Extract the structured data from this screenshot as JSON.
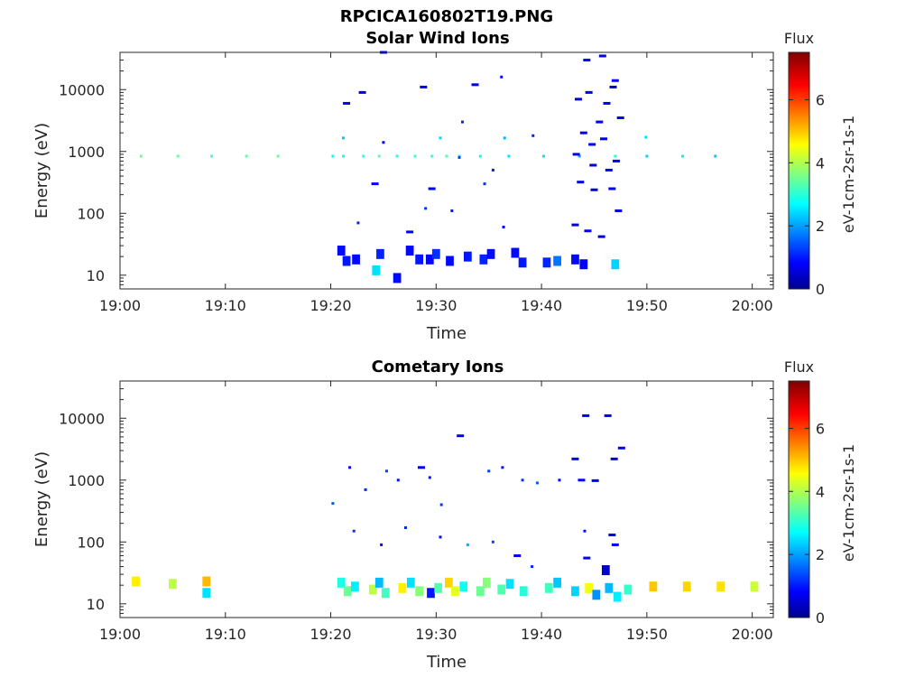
{
  "figure": {
    "title": "RPCICA160802T19.PNG"
  },
  "chart_data": [
    {
      "type": "heatmap",
      "title": "Solar Wind Ions",
      "xlabel": "Time",
      "ylabel": "Energy (eV)",
      "x_ticks": [
        "19:00",
        "19:10",
        "19:20",
        "19:30",
        "19:40",
        "19:50",
        "20:00"
      ],
      "x_range_min": [
        0,
        62
      ],
      "y_ticks": [
        "10",
        "100",
        "1000",
        "10000"
      ],
      "y_scale": "log",
      "y_range_eV": [
        6,
        40000
      ],
      "grid": false,
      "colorbar": {
        "title": "Flux",
        "label": "eV-1cm-2sr-1s-1",
        "range": [
          0,
          7.5
        ],
        "ticks": [
          "0",
          "2",
          "4",
          "6"
        ],
        "colormap": "jet"
      },
      "cells_note": "minutes after 19:00, energy eV, flux",
      "cells": [
        [
          2,
          840,
          3.6
        ],
        [
          5.5,
          840,
          3.6
        ],
        [
          8.7,
          840,
          3.3
        ],
        [
          12,
          840,
          3.5
        ],
        [
          15,
          840,
          3.6
        ],
        [
          20.2,
          840,
          2.8
        ],
        [
          21.2,
          840,
          2.9
        ],
        [
          23.1,
          840,
          3.0
        ],
        [
          24.6,
          840,
          3.5
        ],
        [
          26.3,
          840,
          3.1
        ],
        [
          28,
          840,
          3.3
        ],
        [
          29.6,
          840,
          3.2
        ],
        [
          31,
          840,
          3.4
        ],
        [
          32.2,
          840,
          3.0
        ],
        [
          34.2,
          840,
          2.8
        ],
        [
          36.9,
          840,
          2.6
        ],
        [
          40.2,
          840,
          2.6
        ],
        [
          43.6,
          840,
          2.2
        ],
        [
          47,
          840,
          3.0
        ],
        [
          50,
          840,
          2.5
        ],
        [
          53.4,
          840,
          2.7
        ],
        [
          56.5,
          840,
          2.4
        ],
        [
          21.2,
          1650,
          2.4
        ],
        [
          25.0,
          1400,
          1.0
        ],
        [
          30.4,
          1650,
          2.5
        ],
        [
          36.5,
          1650,
          2.3
        ],
        [
          49.9,
          1700,
          2.6
        ],
        [
          21.0,
          25,
          1.0
        ],
        [
          21.5,
          17,
          1.1
        ],
        [
          22.4,
          18,
          1.0
        ],
        [
          24.7,
          22,
          1.2
        ],
        [
          26.3,
          9,
          1.0
        ],
        [
          27.5,
          25,
          1.0
        ],
        [
          28.4,
          18,
          1.1
        ],
        [
          29.4,
          18,
          1.0
        ],
        [
          30.0,
          22,
          1.3
        ],
        [
          31.3,
          17,
          1.0
        ],
        [
          33.0,
          20,
          1.1
        ],
        [
          34.5,
          18,
          1.2
        ],
        [
          35.2,
          22,
          1.0
        ],
        [
          37.5,
          23,
          1.0
        ],
        [
          38.2,
          16,
          1.1
        ],
        [
          40.5,
          16,
          1.2
        ],
        [
          43.2,
          18,
          1.0
        ],
        [
          44.0,
          15,
          0.9
        ],
        [
          47.0,
          15,
          2.5
        ],
        [
          24.3,
          12,
          2.6
        ],
        [
          41.5,
          17,
          1.8
        ],
        [
          21.5,
          6000,
          0.8
        ],
        [
          23.0,
          9000,
          0.7
        ],
        [
          25.0,
          40000,
          0.8
        ],
        [
          28.8,
          11000,
          0.9
        ],
        [
          32.5,
          3000,
          1.2
        ],
        [
          33.7,
          12000,
          0.8
        ],
        [
          36.2,
          16000,
          1.0
        ],
        [
          39.2,
          1800,
          1.2
        ],
        [
          24.2,
          300,
          0.9
        ],
        [
          29.6,
          250,
          0.8
        ],
        [
          32.2,
          800,
          1.4
        ],
        [
          34.6,
          300,
          1.3
        ],
        [
          35.4,
          500,
          1.1
        ],
        [
          22.6,
          70,
          1.2
        ],
        [
          29.0,
          120,
          1.3
        ],
        [
          31.5,
          110,
          1.1
        ],
        [
          36.4,
          60,
          1.0
        ],
        [
          27.5,
          50,
          0.9
        ],
        [
          43.5,
          7000,
          0.7
        ],
        [
          44.5,
          9000,
          0.8
        ],
        [
          45.5,
          3000,
          0.8
        ],
        [
          46.2,
          6000,
          0.8
        ],
        [
          46.8,
          11000,
          0.6
        ],
        [
          47.5,
          3500,
          0.7
        ],
        [
          44.0,
          2000,
          0.7
        ],
        [
          44.8,
          1300,
          0.9
        ],
        [
          45.9,
          1600,
          0.7
        ],
        [
          43.3,
          900,
          0.8
        ],
        [
          44.9,
          600,
          0.7
        ],
        [
          46.4,
          500,
          0.8
        ],
        [
          47.1,
          700,
          0.7
        ],
        [
          43.7,
          320,
          0.8
        ],
        [
          45.0,
          240,
          0.7
        ],
        [
          46.7,
          250,
          0.8
        ],
        [
          43.2,
          65,
          0.6
        ],
        [
          44.4,
          52,
          0.8
        ],
        [
          45.7,
          42,
          0.7
        ],
        [
          47.3,
          110,
          0.7
        ],
        [
          44.3,
          30000,
          0.9
        ],
        [
          45.8,
          35000,
          0.8
        ],
        [
          47.0,
          14000,
          0.8
        ]
      ]
    },
    {
      "type": "heatmap",
      "title": "Cometary Ions",
      "xlabel": "Time",
      "ylabel": "Energy (eV)",
      "x_ticks": [
        "19:00",
        "19:10",
        "19:20",
        "19:30",
        "19:40",
        "19:50",
        "20:00"
      ],
      "x_range_min": [
        0,
        62
      ],
      "y_ticks": [
        "10",
        "100",
        "1000",
        "10000"
      ],
      "y_scale": "log",
      "y_range_eV": [
        6,
        40000
      ],
      "grid": false,
      "colorbar": {
        "title": "Flux",
        "label": "eV-1cm-2sr-1s-1",
        "range": [
          0,
          7.5
        ],
        "ticks": [
          "0",
          "2",
          "4",
          "6"
        ],
        "colormap": "jet"
      },
      "cells_note": "minutes after 19:00, energy eV, flux",
      "cells": [
        [
          1.5,
          23,
          4.8
        ],
        [
          5,
          21,
          4.2
        ],
        [
          8.2,
          23,
          5.2
        ],
        [
          8.2,
          15,
          2.6
        ],
        [
          21.0,
          22,
          3.0
        ],
        [
          21.6,
          16,
          3.6
        ],
        [
          22.3,
          19,
          2.7
        ],
        [
          24.0,
          17,
          4.2
        ],
        [
          24.6,
          22,
          2.3
        ],
        [
          25.2,
          15,
          3.3
        ],
        [
          26.8,
          18,
          4.8
        ],
        [
          27.6,
          22,
          2.6
        ],
        [
          28.4,
          16,
          3.8
        ],
        [
          29.5,
          15,
          1.1
        ],
        [
          30.2,
          18,
          3.4
        ],
        [
          31.2,
          22,
          5.0
        ],
        [
          31.8,
          16,
          4.5
        ],
        [
          32.6,
          19,
          2.9
        ],
        [
          34.2,
          16,
          3.6
        ],
        [
          34.8,
          22,
          3.8
        ],
        [
          36.2,
          17,
          3.4
        ],
        [
          37.0,
          21,
          2.6
        ],
        [
          38.3,
          16,
          3.1
        ],
        [
          40.7,
          18,
          3.3
        ],
        [
          41.5,
          22,
          2.4
        ],
        [
          43.2,
          16,
          2.5
        ],
        [
          44.5,
          18,
          4.6
        ],
        [
          45.2,
          14,
          2.0
        ],
        [
          46.4,
          18,
          2.3
        ],
        [
          47.2,
          13,
          2.7
        ],
        [
          48.2,
          17,
          3.2
        ],
        [
          50.6,
          19,
          5.1
        ],
        [
          53.8,
          19,
          5.0
        ],
        [
          57.0,
          19,
          4.9
        ],
        [
          60.2,
          19,
          4.3
        ],
        [
          20.2,
          420,
          1.6
        ],
        [
          21.8,
          1600,
          1.0
        ],
        [
          23.3,
          700,
          1.2
        ],
        [
          25.3,
          1400,
          1.4
        ],
        [
          26.4,
          1000,
          1.1
        ],
        [
          28.6,
          1600,
          0.8
        ],
        [
          29.4,
          1100,
          1.1
        ],
        [
          30.5,
          400,
          1.3
        ],
        [
          32.3,
          5200,
          0.8
        ],
        [
          35.0,
          1400,
          1.4
        ],
        [
          36.3,
          1600,
          1.1
        ],
        [
          38.2,
          1000,
          1.3
        ],
        [
          39.6,
          900,
          1.6
        ],
        [
          41.7,
          1000,
          1.0
        ],
        [
          22.2,
          150,
          1.3
        ],
        [
          24.8,
          90,
          1.0
        ],
        [
          27.1,
          170,
          1.2
        ],
        [
          30.4,
          120,
          1.0
        ],
        [
          33.0,
          90,
          2.2
        ],
        [
          35.4,
          100,
          1.4
        ],
        [
          37.7,
          60,
          0.8
        ],
        [
          39.1,
          40,
          1.2
        ],
        [
          43.2,
          2200,
          0.8
        ],
        [
          43.8,
          1000,
          0.9
        ],
        [
          44.2,
          11000,
          0.8
        ],
        [
          45.1,
          980,
          0.8
        ],
        [
          46.3,
          11000,
          0.8
        ],
        [
          46.9,
          2200,
          0.7
        ],
        [
          47.6,
          3300,
          0.8
        ],
        [
          44.1,
          150,
          1.0
        ],
        [
          44.3,
          55,
          0.8
        ],
        [
          46.7,
          130,
          0.8
        ],
        [
          47.0,
          90,
          0.9
        ],
        [
          46.1,
          35,
          0.6
        ]
      ]
    }
  ]
}
